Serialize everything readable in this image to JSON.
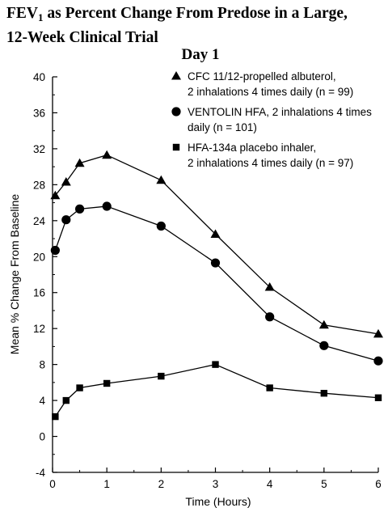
{
  "title": {
    "prefix": "FEV",
    "subscript": "1",
    "line1_rest": " as Percent Change From Predose in a Large,",
    "line2": "12-Week Clinical Trial"
  },
  "chart_data": {
    "type": "line",
    "title": "FEV1 as Percent Change From Predose in a Large, 12-Week Clinical Trial",
    "subtitle": "Day 1",
    "xlabel": "Time (Hours)",
    "ylabel": "Mean % Change From Baseline",
    "xlim": [
      0,
      6
    ],
    "ylim": [
      -4,
      40
    ],
    "xticks": [
      0,
      1,
      2,
      3,
      4,
      5,
      6
    ],
    "yticks": [
      -4,
      0,
      4,
      8,
      12,
      16,
      20,
      24,
      28,
      32,
      36,
      40
    ],
    "grid": false,
    "legend_position": "top-right",
    "series": [
      {
        "name": "CFC 11/12-propelled albuterol, 2 inhalations 4 times daily (n = 99)",
        "legend_lines": [
          "CFC 11/12-propelled albuterol,",
          "2 inhalations 4 times daily (n = 99)"
        ],
        "marker": "triangle",
        "x": [
          0.05,
          0.25,
          0.5,
          1,
          2,
          3,
          4,
          5,
          6
        ],
        "y": [
          26.8,
          28.3,
          30.4,
          31.3,
          28.5,
          22.5,
          16.6,
          12.4,
          11.4
        ]
      },
      {
        "name": "VENTOLIN HFA, 2 inhalations 4 times daily (n = 101)",
        "legend_lines": [
          "VENTOLIN HFA, 2 inhalations 4 times",
          "daily (n = 101)"
        ],
        "marker": "circle",
        "x": [
          0.05,
          0.25,
          0.5,
          1,
          2,
          3,
          4,
          5,
          6
        ],
        "y": [
          20.7,
          24.1,
          25.3,
          25.6,
          23.4,
          19.3,
          13.3,
          10.1,
          8.4
        ]
      },
      {
        "name": "HFA-134a placebo inhaler, 2 inhalations 4 times daily (n = 97)",
        "legend_lines": [
          "HFA-134a placebo inhaler,",
          "2 inhalations 4 times daily (n = 97)"
        ],
        "marker": "square",
        "x": [
          0.05,
          0.25,
          0.5,
          1,
          2,
          3,
          4,
          5,
          6
        ],
        "y": [
          2.2,
          4.0,
          5.4,
          5.9,
          6.7,
          8.0,
          5.4,
          4.8,
          4.3
        ]
      }
    ]
  }
}
